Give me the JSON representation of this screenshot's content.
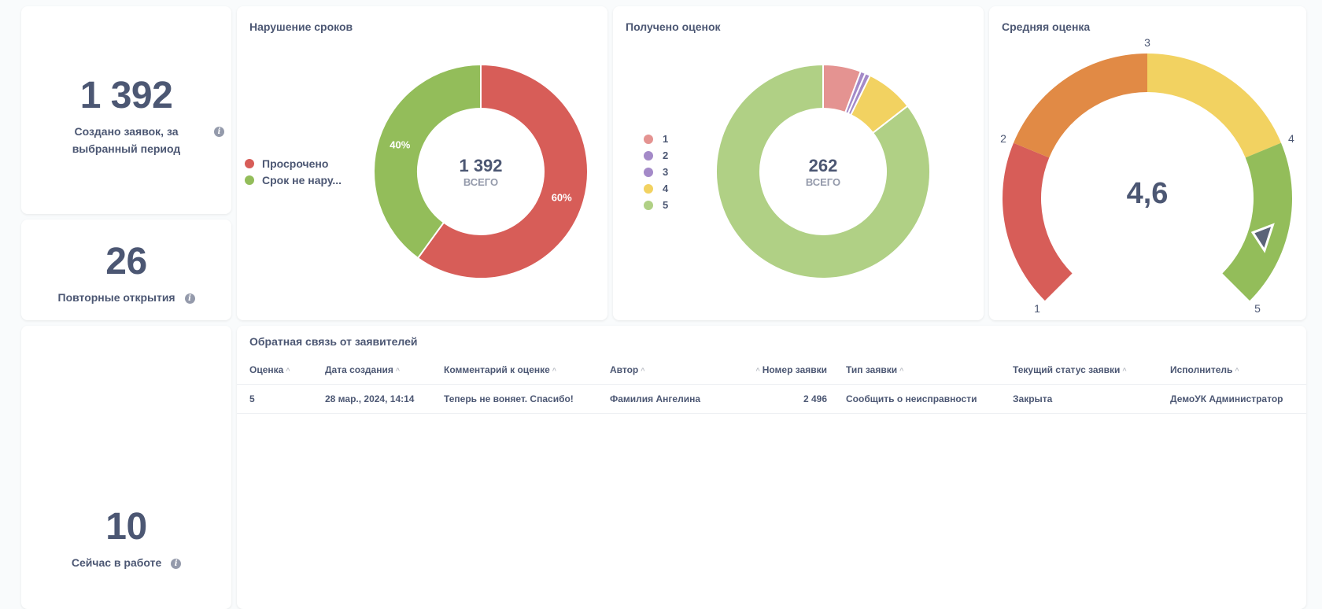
{
  "scalars": {
    "created": {
      "value": "1 392",
      "label_line1": "Создано заявок, за",
      "label_line2": "выбранный период"
    },
    "reopened": {
      "value": "26",
      "label": "Повторные открытия"
    },
    "in_progress": {
      "value": "10",
      "label": "Сейчас в работе"
    }
  },
  "info_icon": "info-icon",
  "deadline_card": {
    "title": "Нарушение сроков",
    "center_value": "1 392",
    "center_label": "ВСЕГО",
    "legend": [
      "Просрочено",
      "Срок не нару..."
    ]
  },
  "ratings_card": {
    "title": "Получено оценок",
    "center_value": "262",
    "center_label": "ВСЕГО",
    "legend": [
      "1",
      "2",
      "3",
      "4",
      "5"
    ]
  },
  "gauge_card": {
    "title": "Средняя оценка",
    "value": "4,6",
    "ticks": [
      "1",
      "2",
      "3",
      "4",
      "5"
    ]
  },
  "chart_data": [
    {
      "type": "pie",
      "title": "Нарушение сроков",
      "total": 1392,
      "categories": [
        "Просрочено",
        "Срок не нару..."
      ],
      "values": [
        60,
        40
      ],
      "labels": [
        "60%",
        "40%"
      ],
      "colors": [
        "#d75d58",
        "#93bd5a"
      ]
    },
    {
      "type": "pie",
      "title": "Получено оценок",
      "total": 262,
      "categories": [
        "1",
        "2",
        "3",
        "4",
        "5"
      ],
      "values": [
        15,
        2,
        2,
        19,
        224
      ],
      "colors": [
        "#e49391",
        "#a48ac8",
        "#a48ac8",
        "#f2d261",
        "#b0d085"
      ]
    },
    {
      "type": "gauge",
      "title": "Средняя оценка",
      "value": 4.6,
      "range": [
        1,
        5
      ],
      "segments": [
        {
          "from": 1,
          "to": 2,
          "color": "#d75d58"
        },
        {
          "from": 2,
          "to": 3,
          "color": "#e18a45"
        },
        {
          "from": 3,
          "to": 4,
          "color": "#f2d261"
        },
        {
          "from": 4,
          "to": 5,
          "color": "#93bd5a"
        }
      ]
    }
  ],
  "feedback": {
    "title": "Обратная связь от заявителей",
    "columns": [
      "Оценка",
      "Дата создания",
      "Комментарий к оценке",
      "Автор",
      "Номер заявки",
      "Тип заявки",
      "Текущий статус заявки",
      "Исполнитель"
    ],
    "rows": [
      [
        "5",
        "28 мар., 2024, 14:14",
        "Теперь не воняет. Спасибо!",
        "Фамилия Ангелина",
        "2 496",
        "Сообщить о неисправности",
        "Закрыта",
        "ДемоУК Администратор"
      ]
    ]
  }
}
